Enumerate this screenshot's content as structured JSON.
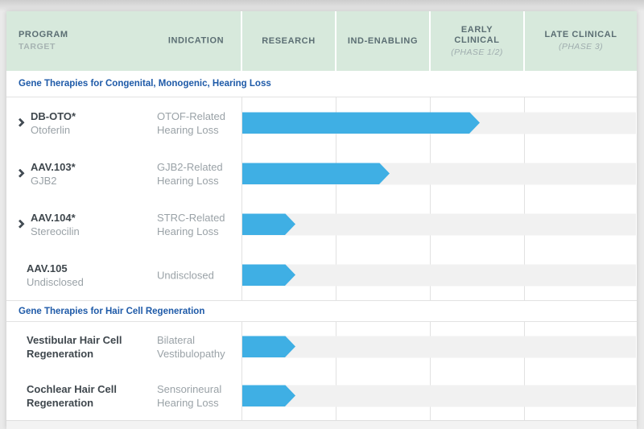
{
  "pipeline": {
    "header": {
      "col_program": "PROGRAM",
      "col_program_sub": "TARGET",
      "col_indication": "INDICATION",
      "col_research": "RESEARCH",
      "col_ind_enabling": "IND-ENABLING",
      "col_early": "EARLY CLINICAL",
      "col_early_sub": "(PHASE 1/2)",
      "col_late": "LATE CLINICAL",
      "col_late_sub": "(PHASE 3)"
    },
    "sections": [
      {
        "title": "Gene Therapies for Congenital, Monogenic, Hearing Loss",
        "rows": [
          {
            "name": "DB-OTO*",
            "target": "Otoferlin",
            "indication": "OTOF-Related Hearing Loss",
            "has_expander": true,
            "progress_stages": 2.52,
            "stage_label": "Early Clinical (Phase 1/2)"
          },
          {
            "name": "AAV.103*",
            "target": "GJB2",
            "indication": "GJB2-Related Hearing Loss",
            "has_expander": true,
            "progress_stages": 1.56,
            "stage_label": "IND-Enabling"
          },
          {
            "name": "AAV.104*",
            "target": "Stereocilin",
            "indication": "STRC-Related Hearing Loss",
            "has_expander": true,
            "progress_stages": 0.56,
            "stage_label": "Research"
          },
          {
            "name": "AAV.105",
            "target": "Undisclosed",
            "indication": "Undisclosed",
            "has_expander": false,
            "progress_stages": 0.56,
            "stage_label": "Research"
          }
        ]
      },
      {
        "title": "Gene Therapies for Hair Cell Regeneration",
        "rows": [
          {
            "name": "Vestibular Hair Cell Regeneration",
            "indication": "Bilateral Vestibulopathy",
            "has_expander": false,
            "progress_stages": 0.56,
            "stage_label": "Research"
          },
          {
            "name": "Cochlear Hair Cell Regeneration",
            "indication": "Sensorineural Hearing Loss",
            "has_expander": false,
            "progress_stages": 0.56,
            "stage_label": "Research"
          }
        ]
      }
    ],
    "colors": {
      "bar_blue": "#3fafe4",
      "header_green": "#d7e9dc",
      "section_title_blue": "#1e5aa8",
      "track_gray": "#f1f1f1"
    }
  },
  "chart_data": {
    "type": "bar",
    "title": "",
    "stages": [
      "Research",
      "IND-Enabling",
      "Early Clinical (Phase 1/2)",
      "Late Clinical (Phase 3)"
    ],
    "xlim_stage_units": [
      0,
      4
    ],
    "series": [
      {
        "name": "DB-OTO* (Otoferlin)",
        "section": "Gene Therapies for Congenital, Monogenic, Hearing Loss",
        "indication": "OTOF-Related Hearing Loss",
        "progress_stage_units": 2.52
      },
      {
        "name": "AAV.103* (GJB2)",
        "section": "Gene Therapies for Congenital, Monogenic, Hearing Loss",
        "indication": "GJB2-Related Hearing Loss",
        "progress_stage_units": 1.56
      },
      {
        "name": "AAV.104* (Stereocilin)",
        "section": "Gene Therapies for Congenital, Monogenic, Hearing Loss",
        "indication": "STRC-Related Hearing Loss",
        "progress_stage_units": 0.56
      },
      {
        "name": "AAV.105 (Undisclosed)",
        "section": "Gene Therapies for Congenital, Monogenic, Hearing Loss",
        "indication": "Undisclosed",
        "progress_stage_units": 0.56
      },
      {
        "name": "Vestibular Hair Cell Regeneration",
        "section": "Gene Therapies for Hair Cell Regeneration",
        "indication": "Bilateral Vestibulopathy",
        "progress_stage_units": 0.56
      },
      {
        "name": "Cochlear Hair Cell Regeneration",
        "section": "Gene Therapies for Hair Cell Regeneration",
        "indication": "Sensorineural Hearing Loss",
        "progress_stage_units": 0.56
      }
    ]
  }
}
